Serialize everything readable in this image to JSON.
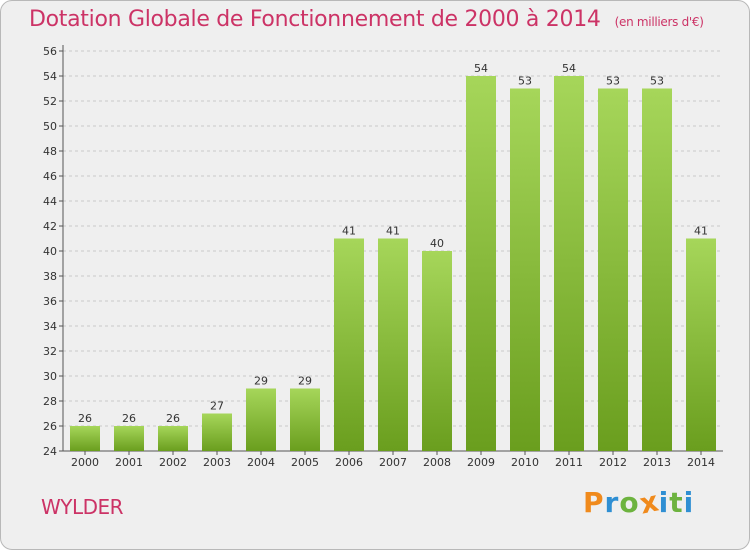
{
  "title": "Dotation Globale de Fonctionnement de 2000 à 2014",
  "unit_note": "(en milliers d'€)",
  "town": "WYLDER",
  "logo": {
    "text": "Proxiti",
    "letters": [
      {
        "ch": "P",
        "color": "#f08a1c"
      },
      {
        "ch": "r",
        "color": "#2f8fd3"
      },
      {
        "ch": "o",
        "color": "#6db33f"
      },
      {
        "ch": "x",
        "color": "#f08a1c"
      },
      {
        "ch": "i",
        "color": "#2f8fd3"
      },
      {
        "ch": "t",
        "color": "#6db33f"
      },
      {
        "ch": "i",
        "color": "#2f8fd3"
      }
    ]
  },
  "colors": {
    "title": "#cc3366",
    "bar_light": "#a6d65a",
    "bar_dark": "#6a9e1e",
    "grid": "#c8c8c8",
    "text": "#333333"
  },
  "chart_data": {
    "type": "bar",
    "categories": [
      "2000",
      "2001",
      "2002",
      "2003",
      "2004",
      "2005",
      "2006",
      "2007",
      "2008",
      "2009",
      "2010",
      "2011",
      "2012",
      "2013",
      "2014"
    ],
    "values": [
      26,
      26,
      26,
      27,
      29,
      29,
      41,
      41,
      40,
      54,
      53,
      54,
      53,
      53,
      41
    ],
    "ylim": [
      24,
      56
    ],
    "yticks": [
      24,
      26,
      28,
      30,
      32,
      34,
      36,
      38,
      40,
      42,
      44,
      46,
      48,
      50,
      52,
      54,
      56
    ],
    "grid": true,
    "data_labels": true
  }
}
